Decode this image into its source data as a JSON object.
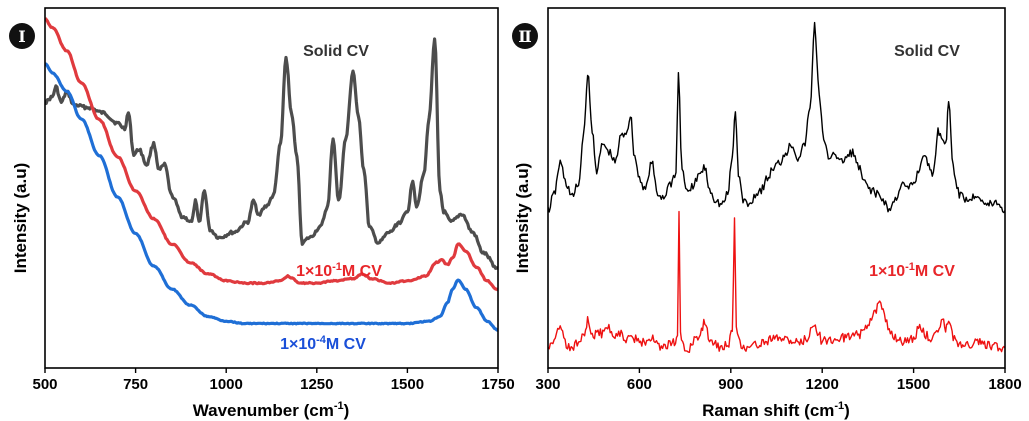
{
  "chart_data": [
    {
      "type": "line",
      "panel_label": "Ⅰ",
      "xlabel": "Wavenumber (cm",
      "xlabel_sup": "-1",
      "xlabel_tail": ")",
      "ylabel": "Intensity (a.u)",
      "xlim": [
        500,
        1750
      ],
      "x_ticks": [
        "500",
        "750",
        "1000",
        "1250",
        "1500",
        "1750"
      ],
      "y_ticks": false,
      "grid": false,
      "series": [
        {
          "name": "Solid CV",
          "color": "#4d4d4d",
          "label_color": "#333333",
          "x": [
            500,
            520,
            530,
            545,
            560,
            580,
            620,
            660,
            700,
            720,
            730,
            745,
            760,
            780,
            800,
            815,
            830,
            850,
            880,
            905,
            915,
            925,
            940,
            955,
            980,
            1020,
            1060,
            1075,
            1090,
            1110,
            1130,
            1150,
            1165,
            1180,
            1195,
            1210,
            1230,
            1260,
            1280,
            1295,
            1310,
            1330,
            1350,
            1365,
            1380,
            1395,
            1420,
            1450,
            1480,
            1500,
            1515,
            1525,
            1545,
            1560,
            1575,
            1590,
            1600,
            1620,
            1650,
            1680,
            1710,
            1750
          ],
          "y": [
            0.76,
            0.78,
            0.82,
            0.76,
            0.8,
            0.75,
            0.74,
            0.72,
            0.68,
            0.66,
            0.72,
            0.56,
            0.58,
            0.52,
            0.6,
            0.5,
            0.52,
            0.4,
            0.32,
            0.3,
            0.38,
            0.3,
            0.42,
            0.27,
            0.24,
            0.26,
            0.3,
            0.38,
            0.33,
            0.36,
            0.4,
            0.6,
            0.93,
            0.72,
            0.55,
            0.22,
            0.24,
            0.28,
            0.36,
            0.62,
            0.38,
            0.62,
            0.88,
            0.7,
            0.5,
            0.28,
            0.22,
            0.26,
            0.3,
            0.34,
            0.46,
            0.36,
            0.48,
            0.7,
            1.0,
            0.42,
            0.34,
            0.3,
            0.33,
            0.26,
            0.18,
            0.12
          ]
        },
        {
          "name": "1×10",
          "name_sup": "-1",
          "name_tail": "M CV",
          "color": "#e03a3e",
          "label_color": "#e8262a",
          "x": [
            500,
            520,
            560,
            600,
            650,
            700,
            750,
            800,
            850,
            900,
            950,
            1000,
            1050,
            1100,
            1150,
            1170,
            1185,
            1200,
            1250,
            1300,
            1350,
            1375,
            1400,
            1450,
            1500,
            1550,
            1580,
            1595,
            1610,
            1625,
            1640,
            1660,
            1690,
            1720,
            1750
          ],
          "y": [
            1.18,
            1.14,
            1.04,
            0.9,
            0.74,
            0.58,
            0.43,
            0.31,
            0.2,
            0.12,
            0.07,
            0.04,
            0.03,
            0.03,
            0.04,
            0.06,
            0.05,
            0.03,
            0.03,
            0.04,
            0.05,
            0.07,
            0.05,
            0.03,
            0.04,
            0.06,
            0.12,
            0.13,
            0.11,
            0.14,
            0.2,
            0.17,
            0.1,
            0.04,
            0.0
          ]
        },
        {
          "name": "1×10",
          "name_sup": "-4",
          "name_tail": "M CV",
          "color": "#1f6fd6",
          "label_color": "#1a4fd8",
          "x": [
            500,
            520,
            560,
            600,
            650,
            700,
            750,
            800,
            850,
            900,
            950,
            1000,
            1050,
            1100,
            1200,
            1300,
            1400,
            1500,
            1560,
            1590,
            1610,
            1625,
            1640,
            1660,
            1690,
            1720,
            1750
          ],
          "y": [
            1.08,
            1.04,
            0.96,
            0.84,
            0.68,
            0.5,
            0.34,
            0.2,
            0.1,
            0.03,
            -0.02,
            -0.04,
            -0.05,
            -0.05,
            -0.05,
            -0.05,
            -0.05,
            -0.05,
            -0.04,
            -0.02,
            0.04,
            0.1,
            0.14,
            0.1,
            0.02,
            -0.04,
            -0.08
          ]
        }
      ]
    },
    {
      "type": "line",
      "panel_label": "Ⅱ",
      "xlabel": "Raman shift (cm",
      "xlabel_sup": "-1",
      "xlabel_tail": ")",
      "ylabel": "Intensity (a.u)",
      "xlim": [
        300,
        1800
      ],
      "x_ticks": [
        "300",
        "600",
        "900",
        "1200",
        "1500",
        "1800"
      ],
      "y_ticks": false,
      "grid": false,
      "series": [
        {
          "name": "Solid CV",
          "color": "#000000",
          "label_color": "#333333",
          "x": [
            300,
            320,
            340,
            360,
            380,
            400,
            420,
            430,
            445,
            460,
            480,
            500,
            520,
            540,
            560,
            570,
            585,
            600,
            620,
            640,
            660,
            680,
            700,
            720,
            728,
            740,
            760,
            780,
            800,
            815,
            830,
            850,
            870,
            890,
            905,
            915,
            925,
            940,
            960,
            980,
            1000,
            1020,
            1040,
            1060,
            1080,
            1100,
            1120,
            1140,
            1160,
            1175,
            1190,
            1205,
            1220,
            1240,
            1260,
            1280,
            1300,
            1320,
            1340,
            1360,
            1380,
            1400,
            1420,
            1440,
            1460,
            1480,
            1500,
            1520,
            1535,
            1550,
            1565,
            1580,
            1595,
            1605,
            1615,
            1630,
            1650,
            1680,
            1710,
            1740,
            1770,
            1800
          ],
          "y": [
            0.3,
            0.36,
            0.48,
            0.4,
            0.35,
            0.4,
            0.62,
            0.82,
            0.6,
            0.45,
            0.55,
            0.52,
            0.48,
            0.58,
            0.6,
            0.66,
            0.5,
            0.42,
            0.38,
            0.48,
            0.36,
            0.35,
            0.4,
            0.44,
            0.82,
            0.45,
            0.36,
            0.4,
            0.44,
            0.46,
            0.38,
            0.34,
            0.32,
            0.36,
            0.5,
            0.68,
            0.44,
            0.34,
            0.32,
            0.36,
            0.38,
            0.42,
            0.46,
            0.48,
            0.52,
            0.55,
            0.5,
            0.54,
            0.68,
            1.0,
            0.74,
            0.56,
            0.5,
            0.52,
            0.48,
            0.5,
            0.52,
            0.46,
            0.4,
            0.38,
            0.36,
            0.34,
            0.3,
            0.34,
            0.4,
            0.38,
            0.4,
            0.46,
            0.52,
            0.46,
            0.44,
            0.6,
            0.58,
            0.54,
            0.72,
            0.46,
            0.36,
            0.34,
            0.36,
            0.32,
            0.33,
            0.3
          ]
        },
        {
          "name": "1×10",
          "name_sup": "-1",
          "name_tail": "M CV",
          "color": "#ee1111",
          "label_color": "#e8262a",
          "x": [
            300,
            320,
            340,
            360,
            380,
            400,
            420,
            430,
            445,
            460,
            480,
            500,
            520,
            540,
            560,
            580,
            600,
            620,
            640,
            660,
            680,
            700,
            715,
            725,
            730,
            735,
            745,
            760,
            780,
            800,
            815,
            830,
            850,
            870,
            890,
            905,
            912,
            918,
            930,
            950,
            980,
            1010,
            1040,
            1070,
            1100,
            1130,
            1150,
            1170,
            1185,
            1200,
            1230,
            1260,
            1290,
            1320,
            1350,
            1370,
            1385,
            1400,
            1420,
            1440,
            1460,
            1480,
            1500,
            1520,
            1540,
            1560,
            1580,
            1595,
            1605,
            1615,
            1630,
            1650,
            1680,
            1710,
            1740,
            1770,
            1800
          ],
          "y": [
            0.0,
            0.05,
            0.12,
            0.02,
            0.0,
            0.04,
            0.08,
            0.16,
            0.06,
            0.1,
            0.08,
            0.12,
            0.06,
            0.08,
            0.05,
            0.06,
            0.03,
            0.04,
            0.06,
            0.02,
            0.0,
            0.02,
            0.04,
            0.06,
            0.78,
            0.08,
            0.0,
            -0.02,
            0.04,
            0.08,
            0.16,
            0.06,
            0.02,
            0.0,
            0.02,
            0.1,
            0.74,
            0.1,
            0.02,
            0.0,
            0.02,
            0.04,
            0.05,
            0.06,
            0.04,
            0.03,
            0.06,
            0.14,
            0.1,
            0.04,
            0.05,
            0.06,
            0.06,
            0.08,
            0.12,
            0.2,
            0.26,
            0.22,
            0.1,
            0.06,
            0.04,
            0.05,
            0.06,
            0.12,
            0.08,
            0.04,
            0.12,
            0.18,
            0.1,
            0.18,
            0.06,
            0.03,
            0.02,
            0.04,
            0.02,
            0.01,
            0.0
          ]
        }
      ]
    }
  ]
}
